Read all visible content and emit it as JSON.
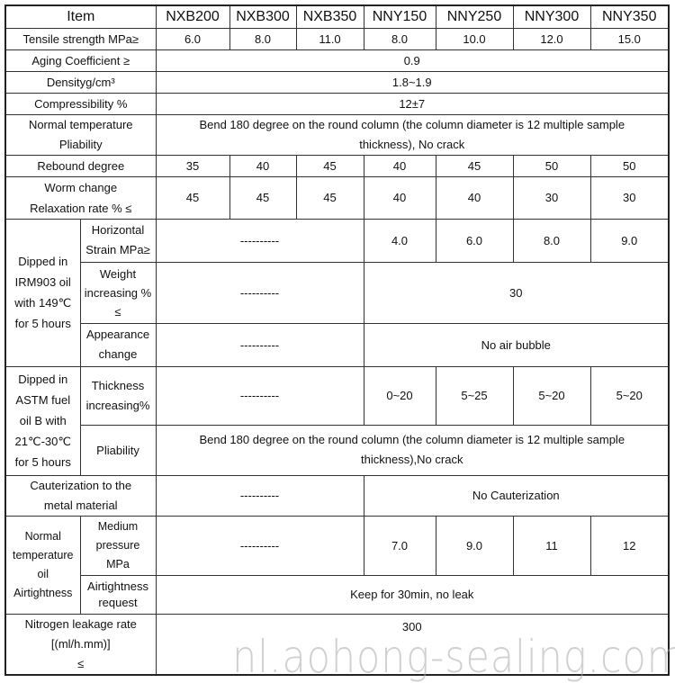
{
  "header": {
    "item": "Item",
    "models": [
      "NXB200",
      "NXB300",
      "NXB350",
      "NNY150",
      "NNY250",
      "NNY300",
      "NNY350"
    ]
  },
  "rows": {
    "tensile": {
      "label": "Tensile strength MPa≥",
      "values": [
        "6.0",
        "8.0",
        "11.0",
        "8.0",
        "10.0",
        "12.0",
        "15.0"
      ]
    },
    "aging": {
      "label": "Aging Coefficient ≥",
      "value": "0.9"
    },
    "density": {
      "label": "Densityg/cm³",
      "value": "1.8~1.9"
    },
    "compress": {
      "label": "Compressibility %",
      "value": "12±7"
    },
    "pliability": {
      "label1": "Normal temperature",
      "label2": "Pliability",
      "value1": "Bend 180 degree on the round column (the column diameter is 12 multiple sample",
      "value2": "thickness), No crack"
    },
    "rebound": {
      "label": "Rebound degree",
      "values": [
        "35",
        "40",
        "45",
        "40",
        "45",
        "50",
        "50"
      ]
    },
    "worm": {
      "label1": "Worm change",
      "label2": "Relaxation rate % ≤",
      "values": [
        "45",
        "45",
        "45",
        "40",
        "40",
        "30",
        "30"
      ]
    },
    "irm": {
      "group": [
        "Dipped in",
        "IRM903 oil",
        "with 149℃",
        "for 5 hours"
      ],
      "horizontal": {
        "label1": "Horizontal",
        "label2": "Strain MPa≥",
        "dash": "----------",
        "values": [
          "4.0",
          "6.0",
          "8.0",
          "9.0"
        ]
      },
      "weight": {
        "label1": "Weight",
        "label2": "increasing %",
        "label3": "≤",
        "dash": "----------",
        "value": "30"
      },
      "appearance": {
        "label1": "Appearance",
        "label2": "change",
        "dash": "----------",
        "value": "No air bubble"
      }
    },
    "astm": {
      "group": [
        "Dipped in",
        "ASTM fuel",
        "oil B with",
        "21℃-30℃",
        "for 5 hours"
      ],
      "thickness": {
        "label1": "Thickness",
        "label2": "increasing%",
        "dash": "----------",
        "values": [
          "0~20",
          "5~25",
          "5~20",
          "5~20"
        ]
      },
      "pliability": {
        "label": "Pliability",
        "value1": "Bend 180 degree on the round column (the column diameter is 12 multiple sample",
        "value2": "thickness),No crack"
      }
    },
    "cauter": {
      "label1": "Cauterization to the",
      "label2": "metal material",
      "dash": "----------",
      "value": "No Cauterization"
    },
    "airtight": {
      "group": [
        "Normal",
        "temperature",
        "oil Airtightness"
      ],
      "medium": {
        "label1": "Medium",
        "label2": "pressure",
        "label3": "MPa",
        "dash": "----------",
        "values": [
          "7.0",
          "9.0",
          "11",
          "12"
        ]
      },
      "request": {
        "label1": "Airtightness",
        "label2": "request",
        "value": "Keep for 30min, no leak"
      }
    },
    "nitrogen": {
      "label1": "Nitrogen leakage rate",
      "label2": "[(ml/h.mm)]",
      "label3": "≤",
      "value": "300"
    }
  },
  "watermark": "nl.aohong-sealing.com"
}
